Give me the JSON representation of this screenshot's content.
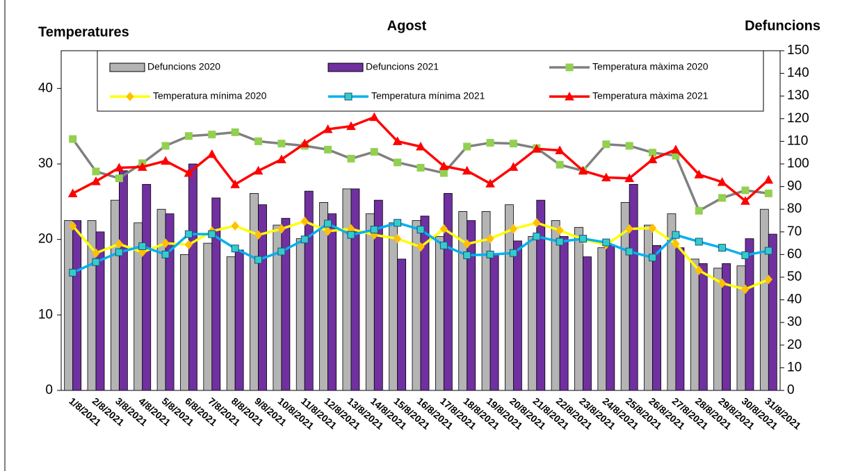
{
  "chart_data": {
    "type": "bar_line",
    "title": "Agost",
    "ylabel": "Temperatures",
    "y2label": "Defuncions",
    "categories": [
      "1/8/2021",
      "2/8/2021",
      "3/8/2021",
      "4/8/2021",
      "5/8/2021",
      "6/8/2021",
      "7/8/2021",
      "8/8/2021",
      "9/8/2021",
      "10/8/2021",
      "11/8/2021",
      "12/8/2021",
      "13/8/2021",
      "14/8/2021",
      "15/8/2021",
      "16/8/2021",
      "17/8/2021",
      "18/8/2021",
      "19/8/2021",
      "20/8/2021",
      "21/8/2021",
      "22/8/2021",
      "23/8/2021",
      "24/8/2021",
      "25/8/2021",
      "26/8/2021",
      "27/8/2021",
      "28/8/2021",
      "29/8/2021",
      "30/8/2021",
      "31/8/2021"
    ],
    "ylim": [
      0,
      45
    ],
    "yticks": [
      0,
      10,
      20,
      30,
      40
    ],
    "y2lim": [
      0,
      150
    ],
    "y2ticks": [
      0,
      10,
      20,
      30,
      40,
      50,
      60,
      70,
      80,
      90,
      100,
      110,
      120,
      130,
      140,
      150
    ],
    "series": [
      {
        "name": "Defuncions 2020",
        "kind": "bar",
        "axis": "y2",
        "color": "#b4b4b4",
        "values": [
          75,
          75,
          84,
          74,
          80,
          60,
          65,
          59,
          87,
          73,
          67,
          83,
          89,
          78,
          74,
          75,
          68,
          79,
          79,
          82,
          68,
          75,
          72,
          63,
          83,
          73,
          78,
          58,
          54,
          55,
          80
        ]
      },
      {
        "name": "Defuncions 2021",
        "kind": "bar",
        "axis": "y2",
        "color": "#7030a0",
        "values": [
          75,
          70,
          97,
          91,
          78,
          100,
          85,
          62,
          82,
          76,
          88,
          78,
          89,
          84,
          58,
          77,
          87,
          75,
          60,
          66,
          84,
          68,
          59,
          64,
          91,
          64,
          63,
          56,
          56,
          67,
          69
        ]
      },
      {
        "name": "Temperatura màxima 2020",
        "kind": "line",
        "color": "#808080",
        "marker": "square",
        "marker_color": "#92d050",
        "values": [
          33.3,
          29.0,
          28.1,
          30.1,
          32.4,
          33.7,
          33.9,
          34.2,
          33.0,
          32.7,
          32.4,
          31.9,
          30.7,
          31.6,
          30.2,
          29.5,
          28.8,
          32.3,
          32.8,
          32.7,
          32.1,
          29.9,
          29.1,
          32.6,
          32.4,
          31.5,
          31.1,
          23.8,
          25.5,
          26.5,
          26.1
        ]
      },
      {
        "name": "Temperatura mínima 2020",
        "kind": "line",
        "color": "#ffff00",
        "marker": "diamond",
        "marker_color": "#ffc000",
        "values": [
          21.8,
          18.2,
          19.4,
          18.3,
          19.5,
          19.3,
          21.1,
          21.8,
          20.6,
          21.4,
          22.4,
          21.1,
          21.4,
          20.6,
          20.1,
          19.0,
          21.4,
          19.4,
          20.1,
          21.4,
          22.2,
          21.2,
          20.0,
          19.3,
          21.4,
          21.5,
          19.4,
          15.9,
          14.2,
          13.4,
          14.7
        ]
      },
      {
        "name": "Temperatura mínima 2021",
        "kind": "line",
        "color": "#00b0f0",
        "marker": "square",
        "marker_color": "#33cccc",
        "values": [
          15.6,
          17.0,
          18.3,
          19.1,
          18.0,
          20.7,
          20.7,
          18.8,
          17.3,
          18.4,
          20.0,
          22.1,
          20.6,
          21.3,
          22.2,
          21.3,
          19.2,
          17.9,
          18.0,
          18.2,
          20.4,
          19.7,
          20.1,
          19.6,
          18.4,
          17.6,
          20.6,
          19.7,
          18.9,
          17.9,
          18.5
        ]
      },
      {
        "name": "Temperatura màxima 2021",
        "kind": "line",
        "color": "#ff0000",
        "marker": "triangle",
        "marker_color": "#ff0000",
        "values": [
          26.1,
          27.7,
          29.5,
          29.6,
          30.4,
          28.8,
          31.3,
          27.3,
          29.1,
          30.6,
          32.7,
          34.6,
          35.0,
          36.2,
          33.0,
          32.3,
          29.7,
          29.1,
          27.4,
          29.6,
          32.0,
          31.8,
          29.1,
          28.2,
          28.1,
          30.6,
          31.9,
          28.6,
          27.6,
          25.1,
          27.9
        ]
      }
    ]
  }
}
